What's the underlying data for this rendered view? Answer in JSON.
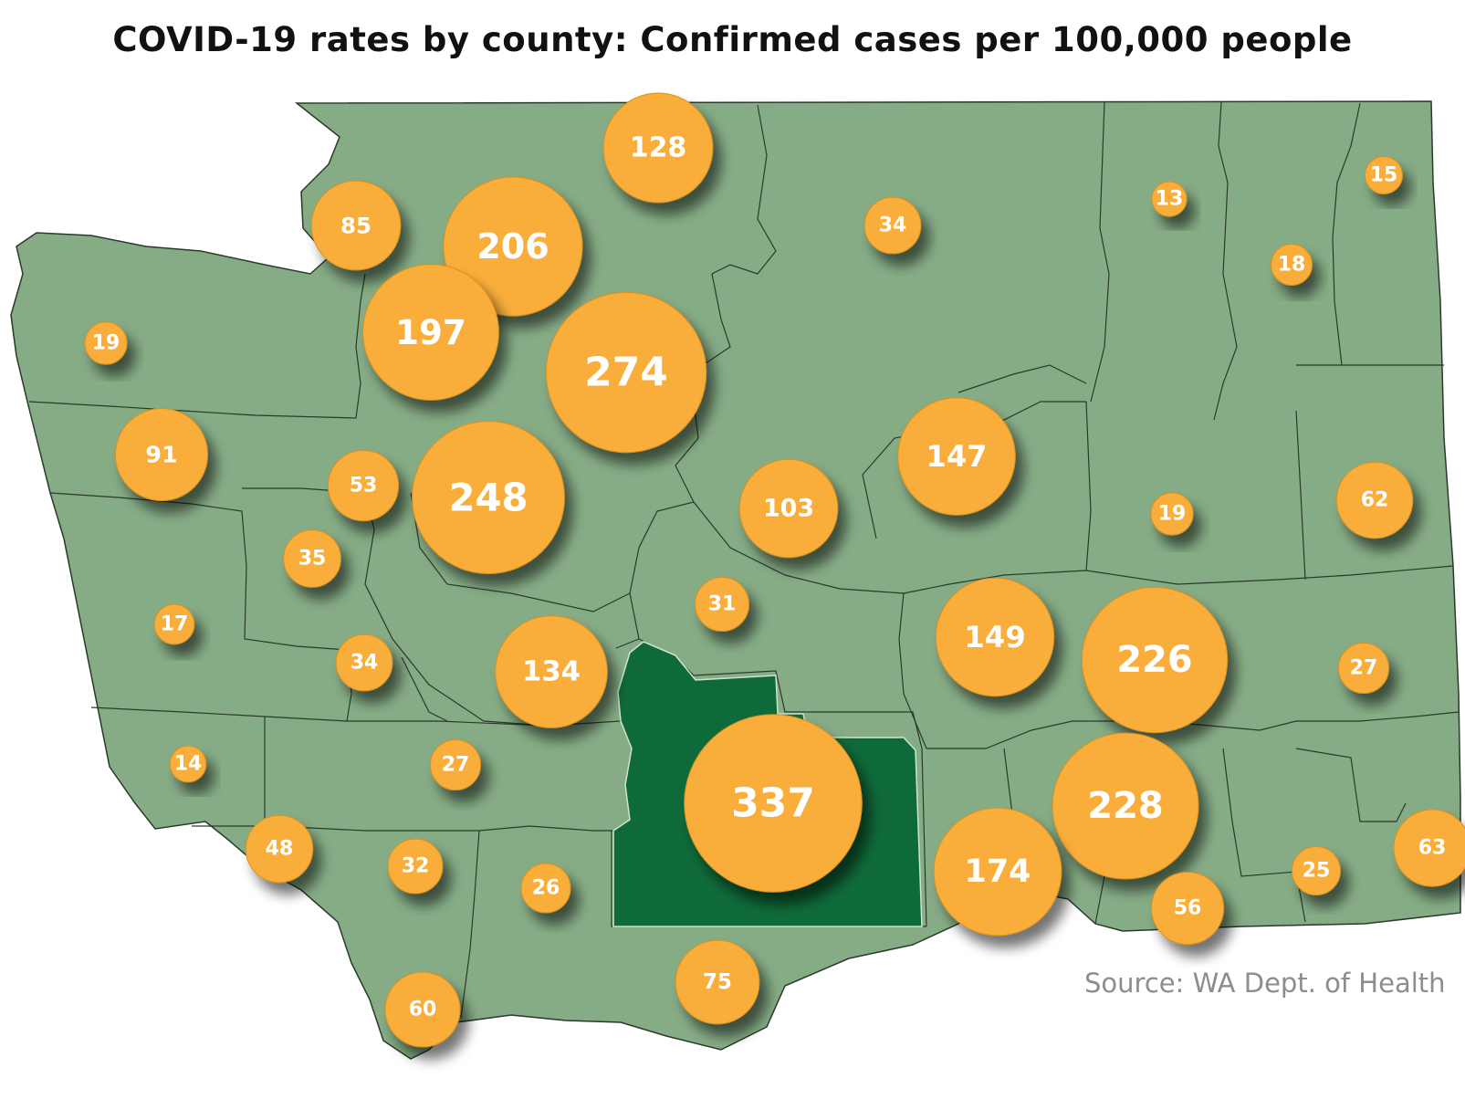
{
  "title": "COVID-19 rates by county: Confirmed cases per 100,000 people",
  "source": "Source: WA Dept. of Health",
  "colors": {
    "land": "#86ac86",
    "highlight_county": "#0f6a39",
    "bubble": "#f9ae3b",
    "border": "#2a3a2a",
    "label": "#ffffff"
  },
  "highlight_county_value": 337,
  "counties": [
    {
      "value": 128
    },
    {
      "value": 85
    },
    {
      "value": 206
    },
    {
      "value": 34
    },
    {
      "value": 13
    },
    {
      "value": 15
    },
    {
      "value": 18
    },
    {
      "value": 19
    },
    {
      "value": 197
    },
    {
      "value": 274
    },
    {
      "value": 91
    },
    {
      "value": 53
    },
    {
      "value": 248
    },
    {
      "value": 147
    },
    {
      "value": 103
    },
    {
      "value": 19
    },
    {
      "value": 62
    },
    {
      "value": 35
    },
    {
      "value": 17
    },
    {
      "value": 31
    },
    {
      "value": 149
    },
    {
      "value": 226
    },
    {
      "value": 34
    },
    {
      "value": 134
    },
    {
      "value": 27
    },
    {
      "value": 14
    },
    {
      "value": 27
    },
    {
      "value": 337
    },
    {
      "value": 228
    },
    {
      "value": 48
    },
    {
      "value": 32
    },
    {
      "value": 26
    },
    {
      "value": 174
    },
    {
      "value": 56
    },
    {
      "value": 25
    },
    {
      "value": 63
    },
    {
      "value": 75
    },
    {
      "value": 60
    }
  ]
}
